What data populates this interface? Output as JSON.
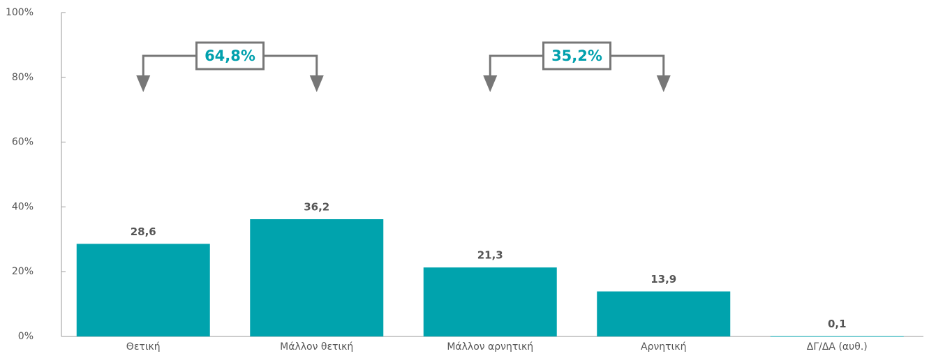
{
  "chart_data": {
    "type": "bar",
    "categories": [
      "Θετική",
      "Μάλλον θετική",
      "Μάλλον αρνητική",
      "Αρνητική",
      "ΔΓ/ΔΑ (αυθ.)"
    ],
    "values": [
      28.6,
      36.2,
      21.3,
      13.9,
      0.1
    ],
    "value_labels": [
      "28,6",
      "36,2",
      "21,3",
      "13,9",
      "0,1"
    ],
    "color": "#00a3ad",
    "ylim": [
      0,
      100
    ],
    "yticks": [
      {
        "value": 0,
        "label": "0%"
      },
      {
        "value": 20,
        "label": "20%"
      },
      {
        "value": 40,
        "label": "40%"
      },
      {
        "value": 60,
        "label": "60%"
      },
      {
        "value": 80,
        "label": "80%"
      },
      {
        "value": 100,
        "label": "100%"
      }
    ],
    "grid": false,
    "annotations": [
      {
        "text": "64,8%"
      },
      {
        "text": "35,2%"
      }
    ]
  }
}
